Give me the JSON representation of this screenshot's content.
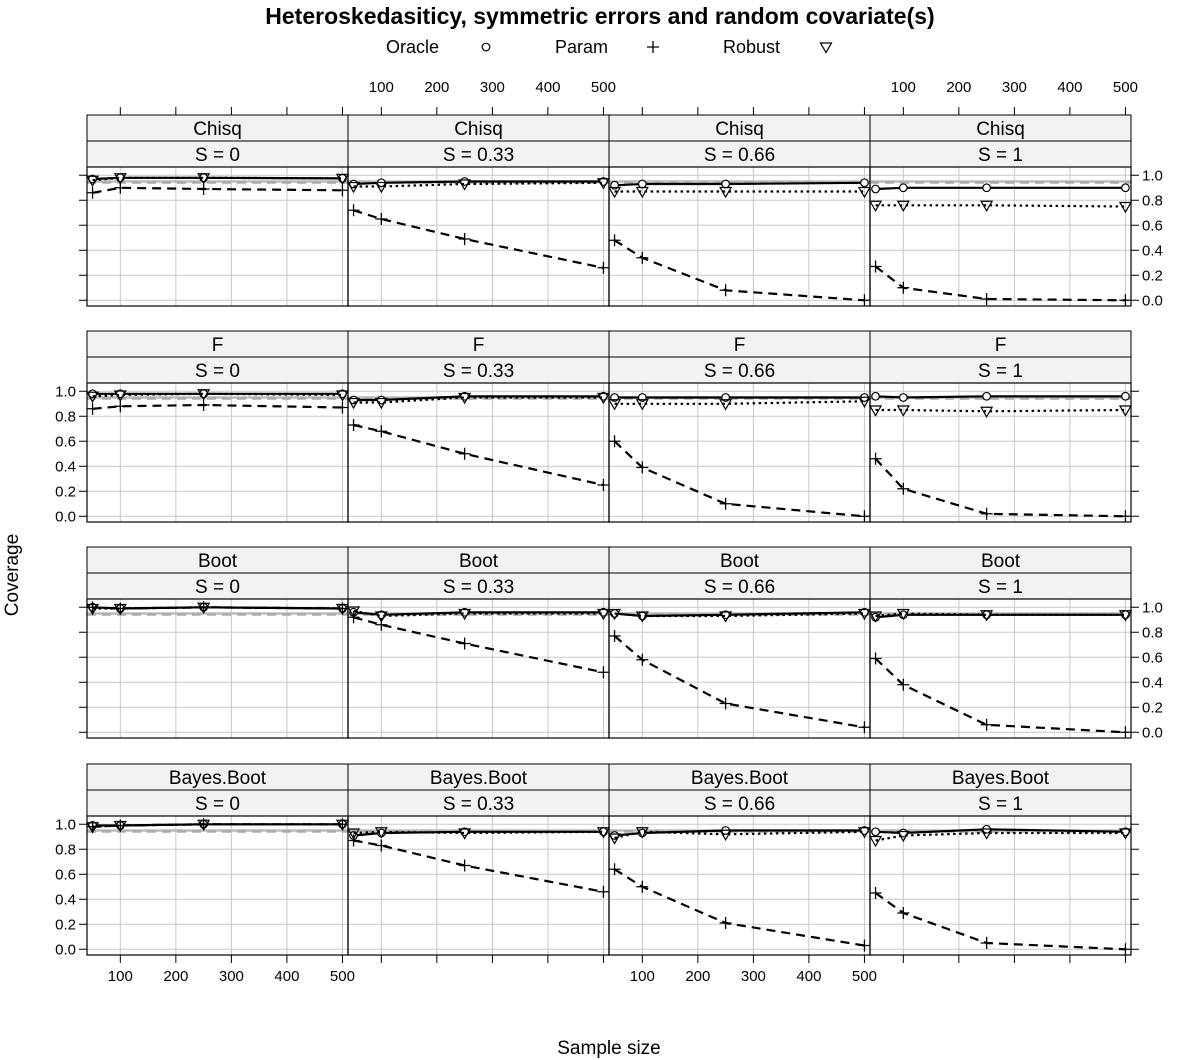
{
  "chart_data": {
    "type": "line",
    "title": "Heteroskedasiticy, symmetric errors and random covariate(s)",
    "xlabel": "Sample size",
    "ylabel": "Coverage",
    "legend": {
      "placement": "top",
      "entries": [
        {
          "name": "Oracle",
          "symbol": "circle",
          "line": "solid"
        },
        {
          "name": "Param",
          "symbol": "plus",
          "line": "dashed"
        },
        {
          "name": "Robust",
          "symbol": "triangle-down",
          "line": "dotted"
        }
      ]
    },
    "x": [
      50,
      100,
      250,
      500
    ],
    "xlim": [
      40,
      510
    ],
    "ylim": [
      -0.03,
      1.05
    ],
    "x_ticks": [
      100,
      200,
      300,
      400,
      500
    ],
    "y_ticks": [
      0.0,
      0.2,
      0.4,
      0.6,
      0.8,
      1.0
    ],
    "y_tick_labels": [
      "0.0",
      "0.2",
      "0.4",
      "0.6",
      "0.8",
      "1.0"
    ],
    "reference_line": {
      "y": 0.95,
      "color": "#bbbbbb",
      "style": "solid"
    },
    "grid": true,
    "layout": {
      "rows": 4,
      "cols": 4
    },
    "columns": [
      "S = 0",
      "S = 0.33",
      "S = 0.66",
      "S = 1"
    ],
    "rows": [
      "Chisq",
      "F",
      "Boot",
      "Bayes.Boot"
    ],
    "panels": [
      {
        "method": "Chisq",
        "s": "S = 0",
        "series": [
          {
            "name": "Oracle",
            "values": [
              0.97,
              0.98,
              0.98,
              0.975
            ]
          },
          {
            "name": "Param",
            "values": [
              0.86,
              0.9,
              0.89,
              0.88
            ]
          },
          {
            "name": "Robust",
            "values": [
              0.96,
              0.98,
              0.98,
              0.975
            ]
          }
        ]
      },
      {
        "method": "Chisq",
        "s": "S = 0.33",
        "series": [
          {
            "name": "Oracle",
            "values": [
              0.93,
              0.94,
              0.95,
              0.95
            ]
          },
          {
            "name": "Param",
            "values": [
              0.72,
              0.65,
              0.49,
              0.26
            ]
          },
          {
            "name": "Robust",
            "values": [
              0.91,
              0.91,
              0.93,
              0.94
            ]
          }
        ]
      },
      {
        "method": "Chisq",
        "s": "S = 0.66",
        "series": [
          {
            "name": "Oracle",
            "values": [
              0.92,
              0.93,
              0.93,
              0.94
            ]
          },
          {
            "name": "Param",
            "values": [
              0.48,
              0.34,
              0.08,
              0.0
            ]
          },
          {
            "name": "Robust",
            "values": [
              0.87,
              0.87,
              0.87,
              0.87
            ]
          }
        ]
      },
      {
        "method": "Chisq",
        "s": "S = 1",
        "series": [
          {
            "name": "Oracle",
            "values": [
              0.89,
              0.9,
              0.9,
              0.9
            ]
          },
          {
            "name": "Param",
            "values": [
              0.27,
              0.1,
              0.01,
              0.0
            ]
          },
          {
            "name": "Robust",
            "values": [
              0.76,
              0.76,
              0.76,
              0.75
            ]
          }
        ]
      },
      {
        "method": "F",
        "s": "S = 0",
        "series": [
          {
            "name": "Oracle",
            "values": [
              0.98,
              0.98,
              0.98,
              0.98
            ]
          },
          {
            "name": "Param",
            "values": [
              0.86,
              0.88,
              0.89,
              0.87
            ]
          },
          {
            "name": "Robust",
            "values": [
              0.96,
              0.97,
              0.98,
              0.97
            ]
          }
        ]
      },
      {
        "method": "F",
        "s": "S = 0.33",
        "series": [
          {
            "name": "Oracle",
            "values": [
              0.93,
              0.93,
              0.96,
              0.96
            ]
          },
          {
            "name": "Param",
            "values": [
              0.73,
              0.68,
              0.5,
              0.25
            ]
          },
          {
            "name": "Robust",
            "values": [
              0.91,
              0.91,
              0.95,
              0.95
            ]
          }
        ]
      },
      {
        "method": "F",
        "s": "S = 0.66",
        "series": [
          {
            "name": "Oracle",
            "values": [
              0.95,
              0.95,
              0.95,
              0.95
            ]
          },
          {
            "name": "Param",
            "values": [
              0.6,
              0.39,
              0.1,
              0.0
            ]
          },
          {
            "name": "Robust",
            "values": [
              0.9,
              0.9,
              0.9,
              0.92
            ]
          }
        ]
      },
      {
        "method": "F",
        "s": "S = 1",
        "series": [
          {
            "name": "Oracle",
            "values": [
              0.96,
              0.95,
              0.96,
              0.96
            ]
          },
          {
            "name": "Param",
            "values": [
              0.46,
              0.22,
              0.02,
              0.0
            ]
          },
          {
            "name": "Robust",
            "values": [
              0.85,
              0.85,
              0.84,
              0.85
            ]
          }
        ]
      },
      {
        "method": "Boot",
        "s": "S = 0",
        "series": [
          {
            "name": "Oracle",
            "values": [
              1.0,
              0.99,
              1.0,
              0.99
            ]
          },
          {
            "name": "Param",
            "values": [
              1.0,
              0.99,
              1.0,
              0.99
            ]
          },
          {
            "name": "Robust",
            "values": [
              0.99,
              0.99,
              1.0,
              0.99
            ]
          }
        ]
      },
      {
        "method": "Boot",
        "s": "S = 0.33",
        "series": [
          {
            "name": "Oracle",
            "values": [
              0.96,
              0.94,
              0.96,
              0.96
            ]
          },
          {
            "name": "Param",
            "values": [
              0.92,
              0.86,
              0.71,
              0.48
            ]
          },
          {
            "name": "Robust",
            "values": [
              0.97,
              0.93,
              0.95,
              0.95
            ]
          }
        ]
      },
      {
        "method": "Boot",
        "s": "S = 0.66",
        "series": [
          {
            "name": "Oracle",
            "values": [
              0.95,
              0.93,
              0.94,
              0.96
            ]
          },
          {
            "name": "Param",
            "values": [
              0.77,
              0.58,
              0.23,
              0.04
            ]
          },
          {
            "name": "Robust",
            "values": [
              0.95,
              0.93,
              0.93,
              0.95
            ]
          }
        ]
      },
      {
        "method": "Boot",
        "s": "S = 1",
        "series": [
          {
            "name": "Oracle",
            "values": [
              0.92,
              0.94,
              0.94,
              0.94
            ]
          },
          {
            "name": "Param",
            "values": [
              0.59,
              0.38,
              0.06,
              0.0
            ]
          },
          {
            "name": "Robust",
            "values": [
              0.93,
              0.95,
              0.94,
              0.94
            ]
          }
        ]
      },
      {
        "method": "Bayes.Boot",
        "s": "S = 0",
        "series": [
          {
            "name": "Oracle",
            "values": [
              0.99,
              0.99,
              1.0,
              1.0
            ]
          },
          {
            "name": "Param",
            "values": [
              0.98,
              0.99,
              1.0,
              1.0
            ]
          },
          {
            "name": "Robust",
            "values": [
              0.98,
              0.99,
              1.0,
              1.0
            ]
          }
        ]
      },
      {
        "method": "Bayes.Boot",
        "s": "S = 0.33",
        "series": [
          {
            "name": "Oracle",
            "values": [
              0.91,
              0.93,
              0.94,
              0.94
            ]
          },
          {
            "name": "Param",
            "values": [
              0.87,
              0.83,
              0.67,
              0.46
            ]
          },
          {
            "name": "Robust",
            "values": [
              0.93,
              0.94,
              0.93,
              0.94
            ]
          }
        ]
      },
      {
        "method": "Bayes.Boot",
        "s": "S = 0.66",
        "series": [
          {
            "name": "Oracle",
            "values": [
              0.91,
              0.93,
              0.95,
              0.95
            ]
          },
          {
            "name": "Param",
            "values": [
              0.64,
              0.5,
              0.21,
              0.03
            ]
          },
          {
            "name": "Robust",
            "values": [
              0.89,
              0.94,
              0.92,
              0.94
            ]
          }
        ]
      },
      {
        "method": "Bayes.Boot",
        "s": "S = 1",
        "series": [
          {
            "name": "Oracle",
            "values": [
              0.94,
              0.93,
              0.96,
              0.94
            ]
          },
          {
            "name": "Param",
            "values": [
              0.45,
              0.29,
              0.05,
              0.0
            ]
          },
          {
            "name": "Robust",
            "values": [
              0.87,
              0.91,
              0.93,
              0.93
            ]
          }
        ]
      }
    ]
  }
}
